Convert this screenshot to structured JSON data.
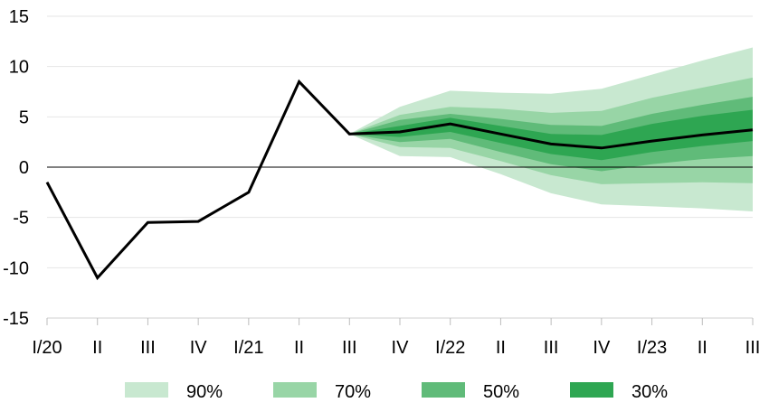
{
  "chart_data": {
    "type": "area",
    "title": "",
    "xlabel": "",
    "ylabel": "",
    "categories": [
      "I/20",
      "II",
      "III",
      "IV",
      "I/21",
      "II",
      "III",
      "IV",
      "I/22",
      "II",
      "III",
      "IV",
      "I/23",
      "II",
      "III"
    ],
    "ylim": [
      -15,
      15
    ],
    "yticks": [
      15,
      10,
      5,
      0,
      -5,
      -10,
      -15
    ],
    "grid": true,
    "legend_position": "bottom",
    "series": [
      {
        "values": [
          -1.5,
          -11,
          -5.5,
          -5.4,
          -2.5,
          8.5,
          3.3,
          3.5,
          4.3,
          3.3,
          2.3,
          1.9,
          2.6,
          3.2,
          3.7
        ]
      }
    ],
    "fan_start_index": 6,
    "fan_bands": [
      {
        "name": "90%",
        "color": "#c8e8d0",
        "lower": [
          3.3,
          1.1,
          1.0,
          -0.7,
          -2.6,
          -3.7,
          -3.9,
          -4.1,
          -4.4
        ],
        "upper": [
          3.3,
          6.0,
          7.6,
          7.4,
          7.3,
          7.8,
          9.2,
          10.6,
          11.9
        ]
      },
      {
        "name": "70%",
        "color": "#98d5a6",
        "lower": [
          3.3,
          2.0,
          1.9,
          0.6,
          -0.8,
          -1.7,
          -1.6,
          -1.5,
          -1.6
        ],
        "upper": [
          3.3,
          5.2,
          6.0,
          5.8,
          5.4,
          5.6,
          6.9,
          7.9,
          8.9
        ]
      },
      {
        "name": "50%",
        "color": "#60bb79",
        "lower": [
          3.3,
          2.5,
          2.8,
          1.5,
          0.3,
          -0.4,
          0.3,
          0.8,
          1.1
        ],
        "upper": [
          3.3,
          4.7,
          5.3,
          4.8,
          4.2,
          4.1,
          5.3,
          6.2,
          7.0
        ]
      },
      {
        "name": "30%",
        "color": "#2ea652",
        "lower": [
          3.3,
          3.0,
          3.5,
          2.4,
          1.3,
          0.7,
          1.5,
          2.1,
          2.6
        ],
        "upper": [
          3.3,
          4.1,
          4.9,
          4.1,
          3.3,
          3.2,
          4.3,
          5.1,
          5.7
        ]
      }
    ]
  }
}
